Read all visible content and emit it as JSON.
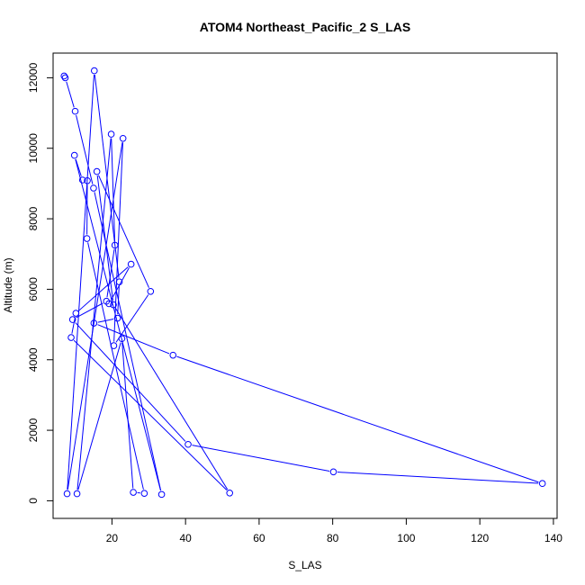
{
  "chart_data": {
    "type": "line",
    "title": "ATOM4 Northeast_Pacific_2 S_LAS",
    "xlabel": "S_LAS",
    "ylabel": "Altitude (m)",
    "xlim": [
      4,
      141
    ],
    "ylim": [
      -500,
      12700
    ],
    "x_ticks": [
      20,
      40,
      60,
      80,
      100,
      120,
      140
    ],
    "y_ticks": [
      0,
      2000,
      4000,
      6000,
      8000,
      10000,
      12000
    ],
    "grid": false,
    "legend": "none",
    "series_color": "#0000ff",
    "marker": "open-circle",
    "series": [
      {
        "x": [
          7.0,
          7.3,
          10.0,
          15.0,
          33.5,
          9.8,
          12.0,
          13.3,
          13.2,
          28.8,
          25.8,
          22.7,
          10.5,
          19.8,
          20.8,
          18.5,
          9.3,
          40.7,
          80.2,
          137.0,
          36.6,
          15.1,
          21.5,
          22.0,
          15.2,
          7.8,
          23.0,
          20.5,
          30.5,
          15.9,
          20.4,
          52.0,
          8.9,
          10.2,
          25.2,
          19.2
        ],
        "y": [
          12050,
          12000,
          11050,
          8870,
          180,
          9800,
          9100,
          9080,
          7440,
          210,
          240,
          4600,
          200,
          10400,
          7250,
          5660,
          5140,
          1600,
          820,
          490,
          4130,
          5040,
          5180,
          6210,
          12200,
          200,
          10280,
          4400,
          5940,
          9340,
          5560,
          220,
          4630,
          5320,
          6710,
          5590
        ]
      }
    ]
  }
}
